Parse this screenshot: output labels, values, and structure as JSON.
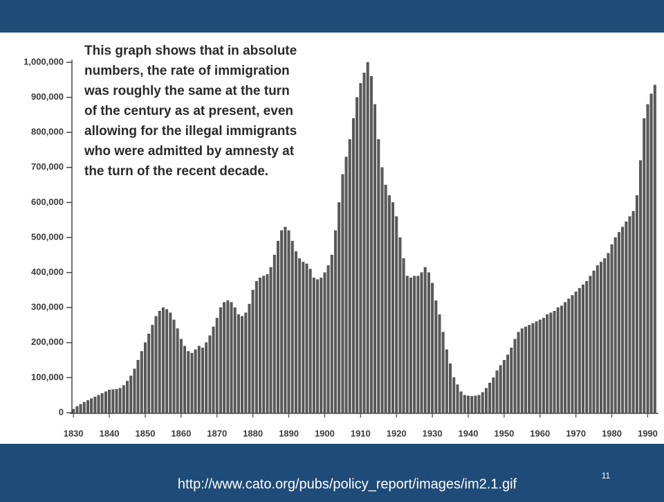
{
  "chart_data": {
    "type": "bar",
    "annotation": [
      "This graph shows that in absolute",
      "numbers, the rate of immigration",
      "was roughly the same at the turn",
      "of the century as at present, even",
      "allowing for the illegal immigrants",
      "who were admitted by amnesty at",
      "the turn of the recent decade."
    ],
    "x": [
      1830,
      1831,
      1832,
      1833,
      1834,
      1835,
      1836,
      1837,
      1838,
      1839,
      1840,
      1841,
      1842,
      1843,
      1844,
      1845,
      1846,
      1847,
      1848,
      1849,
      1850,
      1851,
      1852,
      1853,
      1854,
      1855,
      1856,
      1857,
      1858,
      1859,
      1860,
      1861,
      1862,
      1863,
      1864,
      1865,
      1866,
      1867,
      1868,
      1869,
      1870,
      1871,
      1872,
      1873,
      1874,
      1875,
      1876,
      1877,
      1878,
      1879,
      1880,
      1881,
      1882,
      1883,
      1884,
      1885,
      1886,
      1887,
      1888,
      1889,
      1890,
      1891,
      1892,
      1893,
      1894,
      1895,
      1896,
      1897,
      1898,
      1899,
      1900,
      1901,
      1902,
      1903,
      1904,
      1905,
      1906,
      1907,
      1908,
      1909,
      1910,
      1911,
      1912,
      1913,
      1914,
      1915,
      1916,
      1917,
      1918,
      1919,
      1920,
      1921,
      1922,
      1923,
      1924,
      1925,
      1926,
      1927,
      1928,
      1929,
      1930,
      1931,
      1932,
      1933,
      1934,
      1935,
      1936,
      1937,
      1938,
      1939,
      1940,
      1941,
      1942,
      1943,
      1944,
      1945,
      1946,
      1947,
      1948,
      1949,
      1950,
      1951,
      1952,
      1953,
      1954,
      1955,
      1956,
      1957,
      1958,
      1959,
      1960,
      1961,
      1962,
      1963,
      1964,
      1965,
      1966,
      1967,
      1968,
      1969,
      1970,
      1971,
      1972,
      1973,
      1974,
      1975,
      1976,
      1977,
      1978,
      1979,
      1980,
      1981,
      1982,
      1983,
      1984,
      1985,
      1986,
      1987,
      1988,
      1989,
      1990,
      1991,
      1992
    ],
    "values": [
      10000,
      18000,
      24000,
      30000,
      35000,
      40000,
      45000,
      50000,
      55000,
      60000,
      65000,
      66000,
      67000,
      70000,
      78000,
      90000,
      105000,
      125000,
      150000,
      175000,
      200000,
      225000,
      250000,
      275000,
      290000,
      300000,
      295000,
      285000,
      265000,
      240000,
      210000,
      190000,
      175000,
      170000,
      180000,
      190000,
      185000,
      200000,
      220000,
      245000,
      270000,
      300000,
      315000,
      320000,
      315000,
      300000,
      280000,
      275000,
      285000,
      310000,
      350000,
      375000,
      385000,
      390000,
      395000,
      415000,
      450000,
      490000,
      520000,
      530000,
      520000,
      490000,
      460000,
      440000,
      430000,
      425000,
      410000,
      385000,
      380000,
      385000,
      400000,
      420000,
      450000,
      520000,
      600000,
      680000,
      730000,
      780000,
      840000,
      900000,
      940000,
      970000,
      1000000,
      960000,
      880000,
      780000,
      700000,
      650000,
      620000,
      600000,
      560000,
      500000,
      440000,
      390000,
      385000,
      390000,
      390000,
      400000,
      415000,
      400000,
      370000,
      320000,
      280000,
      230000,
      180000,
      140000,
      100000,
      80000,
      60000,
      50000,
      48000,
      47000,
      48000,
      50000,
      58000,
      70000,
      85000,
      100000,
      120000,
      135000,
      150000,
      165000,
      185000,
      210000,
      230000,
      240000,
      245000,
      250000,
      255000,
      260000,
      265000,
      270000,
      280000,
      285000,
      290000,
      300000,
      305000,
      315000,
      325000,
      335000,
      345000,
      355000,
      365000,
      375000,
      390000,
      405000,
      420000,
      430000,
      440000,
      455000,
      480000,
      500000,
      515000,
      530000,
      545000,
      560000,
      575000,
      620000,
      720000,
      840000,
      880000,
      910000,
      935000
    ],
    "color": "#5a5a5a",
    "xlim": [
      1829,
      1993
    ],
    "xticks": [
      1830,
      1840,
      1850,
      1860,
      1870,
      1880,
      1890,
      1900,
      1910,
      1920,
      1930,
      1940,
      1950,
      1960,
      1970,
      1980,
      1990
    ],
    "ylim": [
      0,
      1000000
    ],
    "yticks": [
      0,
      {
        "value": 100000,
        "label": "100,000"
      },
      {
        "value": 200000,
        "label": "200,000"
      },
      {
        "value": 300000,
        "label": "300,000"
      },
      {
        "value": 400000,
        "label": "400,000"
      },
      {
        "value": 500000,
        "label": "500,000"
      },
      {
        "value": 600000,
        "label": "600,000"
      },
      {
        "value": 700000,
        "label": "700,000"
      },
      {
        "value": 800000,
        "label": "800,000"
      },
      {
        "value": 900000,
        "label": "900,000"
      },
      {
        "value": 1000000,
        "label": "1,000,000"
      }
    ]
  },
  "slide": {
    "page_number": 11,
    "source": "http://www.cato.org/pubs/policy_report/images/im2.1.gif"
  }
}
